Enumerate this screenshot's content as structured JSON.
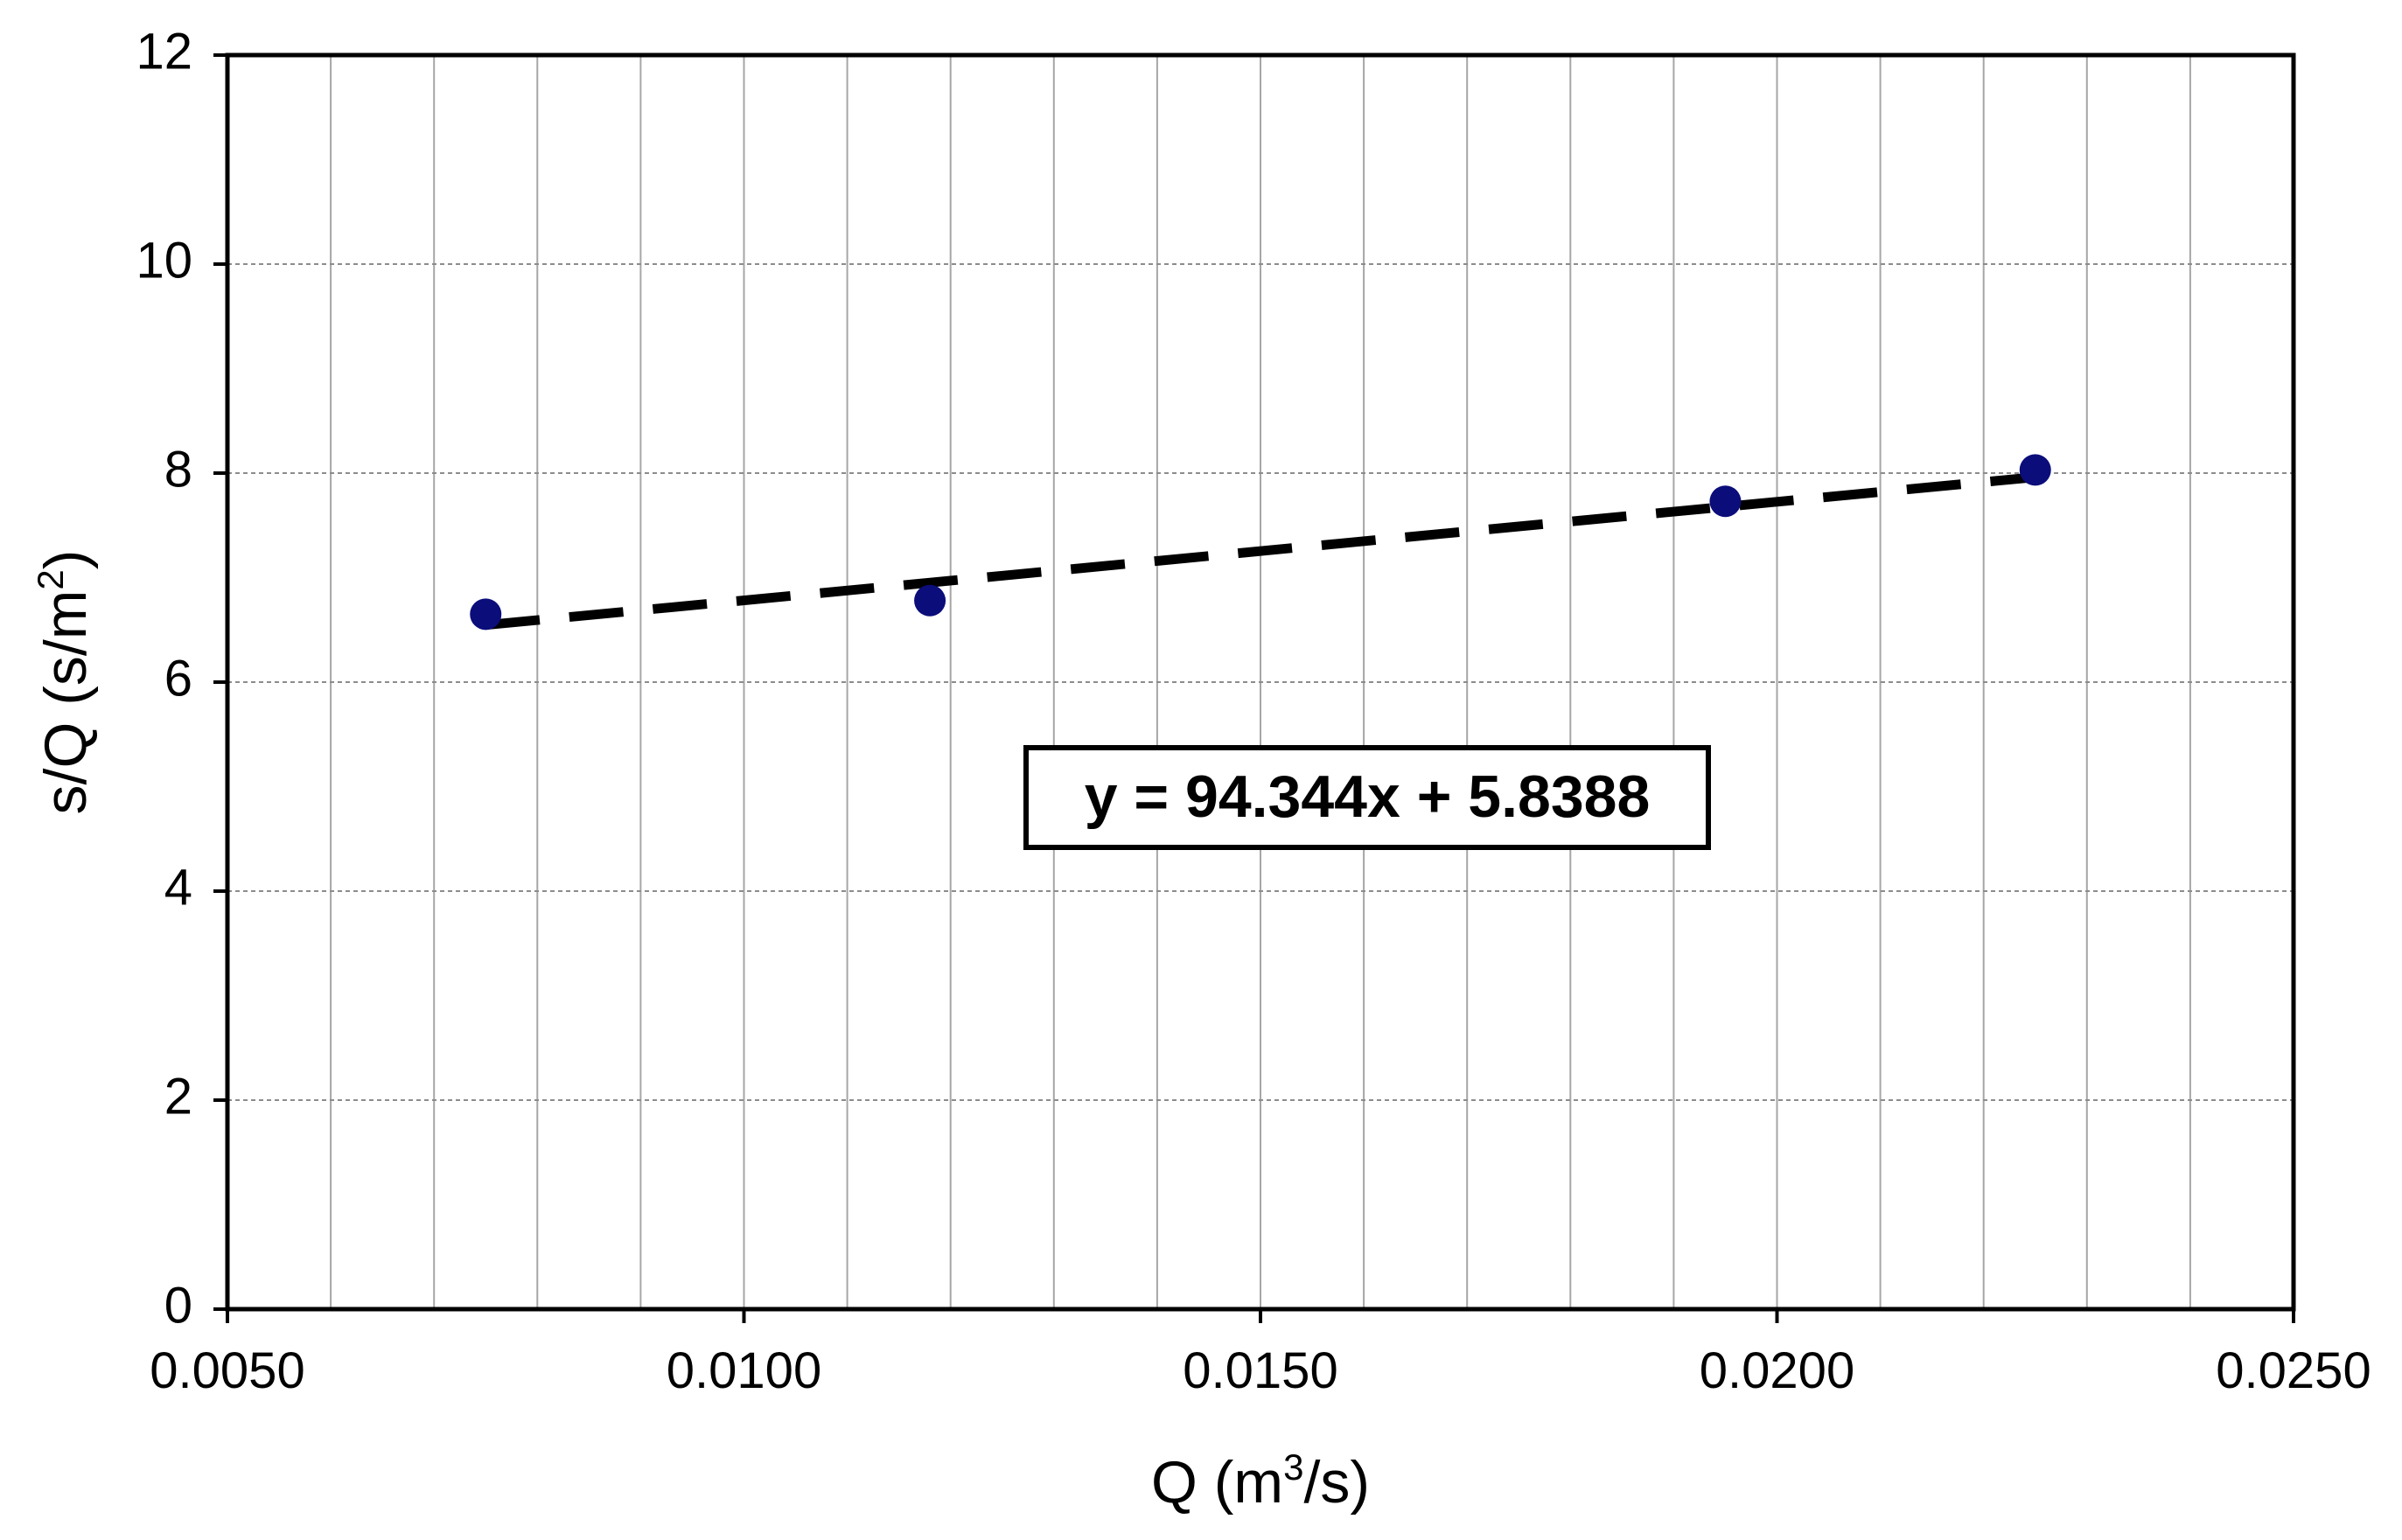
{
  "chart_data": {
    "type": "scatter",
    "xlabel": {
      "base": "Q (m",
      "sup": "3",
      "rest": "/s)"
    },
    "ylabel": {
      "base": "s/Q (s/m",
      "sup": "2",
      "rest": ")"
    },
    "xlim": [
      0.005,
      0.025
    ],
    "ylim": [
      0,
      12
    ],
    "x_ticks": [
      {
        "value": 0.005,
        "label": "0.0050"
      },
      {
        "value": 0.01,
        "label": "0.0100"
      },
      {
        "value": 0.015,
        "label": "0.0150"
      },
      {
        "value": 0.02,
        "label": "0.0200"
      },
      {
        "value": 0.025,
        "label": "0.0250"
      }
    ],
    "y_ticks": [
      {
        "value": 0,
        "label": "0"
      },
      {
        "value": 2,
        "label": "2"
      },
      {
        "value": 4,
        "label": "4"
      },
      {
        "value": 6,
        "label": "6"
      },
      {
        "value": 8,
        "label": "8"
      },
      {
        "value": 10,
        "label": "10"
      },
      {
        "value": 12,
        "label": "12"
      }
    ],
    "x_minor_step": 0.001,
    "grid": {
      "x_minor": true,
      "y_major": true
    },
    "points": [
      {
        "x": 0.0075,
        "y": 6.65
      },
      {
        "x": 0.0118,
        "y": 6.78
      },
      {
        "x": 0.0195,
        "y": 7.73
      },
      {
        "x": 0.0225,
        "y": 8.03
      }
    ],
    "marker_color": "#0b0d7a",
    "trendline": {
      "slope": 94.344,
      "intercept": 5.8388,
      "x_start": 0.0075,
      "x_end": 0.0225,
      "style": "dashed",
      "color": "#000000",
      "equation": "y = 94.344x + 5.8388"
    }
  }
}
